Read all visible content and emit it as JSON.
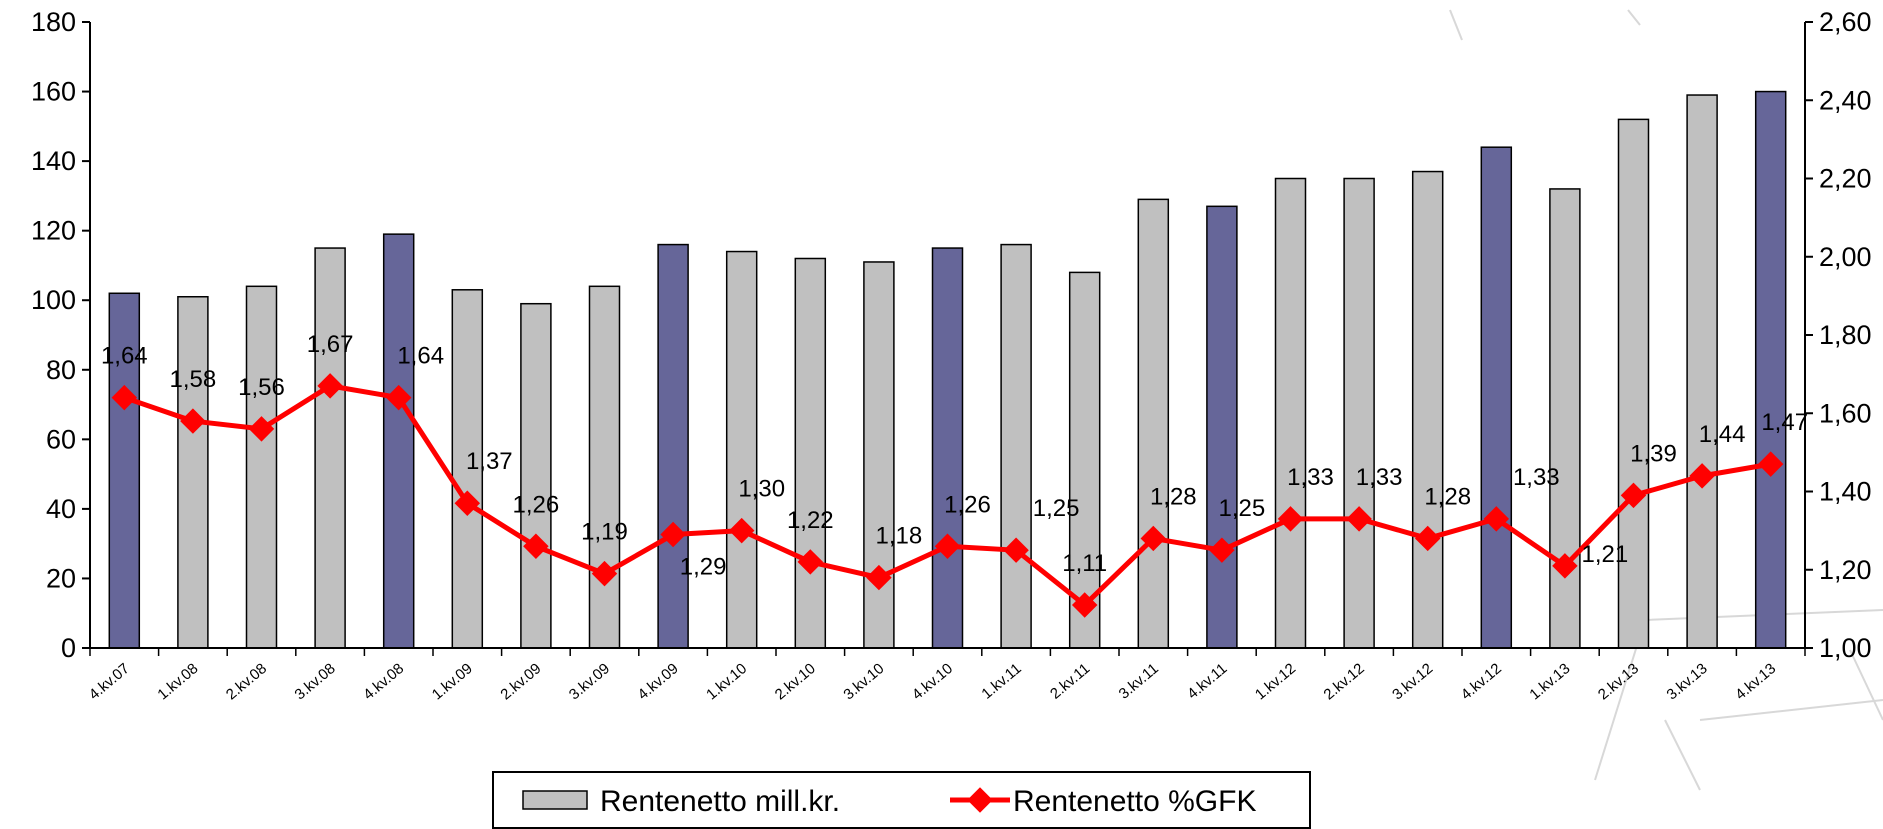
{
  "chart_data": {
    "type": "bar",
    "categories": [
      "4.kv.07",
      "1.kv.08",
      "2.kv.08",
      "3.kv.08",
      "4.kv.08",
      "1.kv.09",
      "2.kv.09",
      "3.kv.09",
      "4.kv.09",
      "1.kv.10",
      "2.kv.10",
      "3.kv.10",
      "4.kv.10",
      "1.kv.11",
      "2.kv.11",
      "3.kv.11",
      "4.kv.11",
      "1.kv.12",
      "2.kv.12",
      "3.kv.12",
      "4.kv.12",
      "1.kv.13",
      "2.kv.13",
      "3.kv.13",
      "4.kv.13"
    ],
    "series": [
      {
        "name": "Rentenetto mill.kr.",
        "type": "bar",
        "axis": "left",
        "values": [
          102,
          101,
          104,
          115,
          119,
          103,
          99,
          104,
          116,
          114,
          112,
          111,
          115,
          116,
          108,
          129,
          127,
          135,
          135,
          137,
          144,
          132,
          152,
          159,
          160
        ],
        "highlight": [
          true,
          false,
          false,
          false,
          true,
          false,
          false,
          false,
          true,
          false,
          false,
          false,
          true,
          false,
          false,
          false,
          true,
          false,
          false,
          false,
          true,
          false,
          false,
          false,
          true
        ]
      },
      {
        "name": "Rentenetto %GFK",
        "type": "line",
        "axis": "right",
        "values": [
          1.64,
          1.58,
          1.56,
          1.67,
          1.64,
          1.37,
          1.26,
          1.19,
          1.29,
          1.3,
          1.22,
          1.18,
          1.26,
          1.25,
          1.11,
          1.28,
          1.25,
          1.33,
          1.33,
          1.28,
          1.33,
          1.21,
          1.39,
          1.44,
          1.47
        ],
        "labels": [
          "1,64",
          "1,58",
          "1,56",
          "1,67",
          "1,64",
          "1,37",
          "1,26",
          "1,19",
          "1,29",
          "1,30",
          "1,22",
          "1,18",
          "1,26",
          "1,25",
          "1,11",
          "1,28",
          "1,25",
          "1,33",
          "1,33",
          "1,28",
          "1,33",
          "1,21",
          "1,39",
          "1,44",
          "1,47"
        ]
      }
    ],
    "y_left": {
      "min": 0,
      "max": 180,
      "ticks": [
        "0",
        "20",
        "40",
        "60",
        "80",
        "100",
        "120",
        "140",
        "160",
        "180"
      ]
    },
    "y_right": {
      "min": 1.0,
      "max": 2.6,
      "ticks": [
        "1,00",
        "1,20",
        "1,40",
        "1,60",
        "1,80",
        "2,00",
        "2,20",
        "2,40",
        "2,60"
      ]
    },
    "grid": false,
    "legend_position": "bottom",
    "colors": {
      "bar_default": "#c0c0c0",
      "bar_highlight": "#666699",
      "line": "#ff0000",
      "axis": "#000000"
    }
  }
}
